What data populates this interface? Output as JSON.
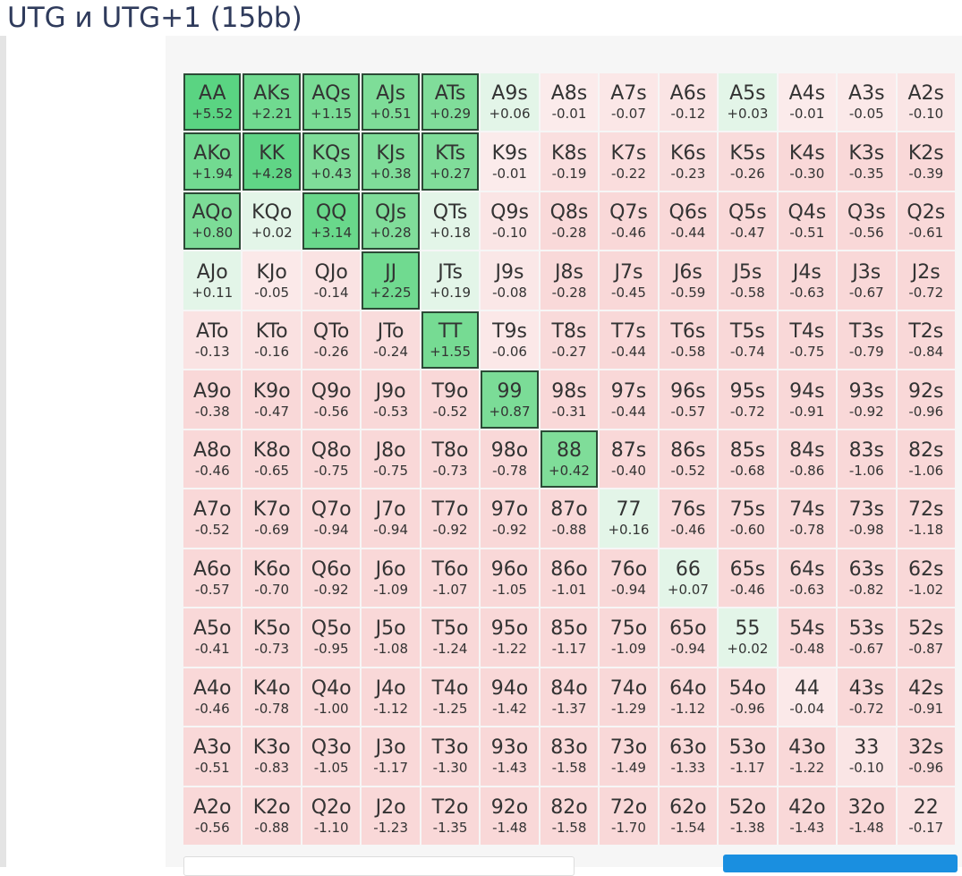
{
  "header": {
    "title": "UTG и UTG+1 (15bb)"
  },
  "grid": {
    "rows": [
      [
        [
          "AA",
          "+5.52"
        ],
        [
          "AKs",
          "+2.21"
        ],
        [
          "AQs",
          "+1.15"
        ],
        [
          "AJs",
          "+0.51"
        ],
        [
          "ATs",
          "+0.29"
        ],
        [
          "A9s",
          "+0.06"
        ],
        [
          "A8s",
          "-0.01"
        ],
        [
          "A7s",
          "-0.07"
        ],
        [
          "A6s",
          "-0.12"
        ],
        [
          "A5s",
          "+0.03"
        ],
        [
          "A4s",
          "-0.01"
        ],
        [
          "A3s",
          "-0.05"
        ],
        [
          "A2s",
          "-0.10"
        ]
      ],
      [
        [
          "AKo",
          "+1.94"
        ],
        [
          "KK",
          "+4.28"
        ],
        [
          "KQs",
          "+0.43"
        ],
        [
          "KJs",
          "+0.38"
        ],
        [
          "KTs",
          "+0.27"
        ],
        [
          "K9s",
          "-0.01"
        ],
        [
          "K8s",
          "-0.19"
        ],
        [
          "K7s",
          "-0.22"
        ],
        [
          "K6s",
          "-0.23"
        ],
        [
          "K5s",
          "-0.26"
        ],
        [
          "K4s",
          "-0.30"
        ],
        [
          "K3s",
          "-0.35"
        ],
        [
          "K2s",
          "-0.39"
        ]
      ],
      [
        [
          "AQo",
          "+0.80"
        ],
        [
          "KQo",
          "+0.02"
        ],
        [
          "QQ",
          "+3.14"
        ],
        [
          "QJs",
          "+0.28"
        ],
        [
          "QTs",
          "+0.18"
        ],
        [
          "Q9s",
          "-0.10"
        ],
        [
          "Q8s",
          "-0.28"
        ],
        [
          "Q7s",
          "-0.46"
        ],
        [
          "Q6s",
          "-0.44"
        ],
        [
          "Q5s",
          "-0.47"
        ],
        [
          "Q4s",
          "-0.51"
        ],
        [
          "Q3s",
          "-0.56"
        ],
        [
          "Q2s",
          "-0.61"
        ]
      ],
      [
        [
          "AJo",
          "+0.11"
        ],
        [
          "KJo",
          "-0.05"
        ],
        [
          "QJo",
          "-0.14"
        ],
        [
          "JJ",
          "+2.25"
        ],
        [
          "JTs",
          "+0.19"
        ],
        [
          "J9s",
          "-0.08"
        ],
        [
          "J8s",
          "-0.28"
        ],
        [
          "J7s",
          "-0.45"
        ],
        [
          "J6s",
          "-0.59"
        ],
        [
          "J5s",
          "-0.58"
        ],
        [
          "J4s",
          "-0.63"
        ],
        [
          "J3s",
          "-0.67"
        ],
        [
          "J2s",
          "-0.72"
        ]
      ],
      [
        [
          "ATo",
          "-0.13"
        ],
        [
          "KTo",
          "-0.16"
        ],
        [
          "QTo",
          "-0.26"
        ],
        [
          "JTo",
          "-0.24"
        ],
        [
          "TT",
          "+1.55"
        ],
        [
          "T9s",
          "-0.06"
        ],
        [
          "T8s",
          "-0.27"
        ],
        [
          "T7s",
          "-0.44"
        ],
        [
          "T6s",
          "-0.58"
        ],
        [
          "T5s",
          "-0.74"
        ],
        [
          "T4s",
          "-0.75"
        ],
        [
          "T3s",
          "-0.79"
        ],
        [
          "T2s",
          "-0.84"
        ]
      ],
      [
        [
          "A9o",
          "-0.38"
        ],
        [
          "K9o",
          "-0.47"
        ],
        [
          "Q9o",
          "-0.56"
        ],
        [
          "J9o",
          "-0.53"
        ],
        [
          "T9o",
          "-0.52"
        ],
        [
          "99",
          "+0.87"
        ],
        [
          "98s",
          "-0.31"
        ],
        [
          "97s",
          "-0.44"
        ],
        [
          "96s",
          "-0.57"
        ],
        [
          "95s",
          "-0.72"
        ],
        [
          "94s",
          "-0.91"
        ],
        [
          "93s",
          "-0.92"
        ],
        [
          "92s",
          "-0.96"
        ]
      ],
      [
        [
          "A8o",
          "-0.46"
        ],
        [
          "K8o",
          "-0.65"
        ],
        [
          "Q8o",
          "-0.75"
        ],
        [
          "J8o",
          "-0.75"
        ],
        [
          "T8o",
          "-0.73"
        ],
        [
          "98o",
          "-0.78"
        ],
        [
          "88",
          "+0.42"
        ],
        [
          "87s",
          "-0.40"
        ],
        [
          "86s",
          "-0.52"
        ],
        [
          "85s",
          "-0.68"
        ],
        [
          "84s",
          "-0.86"
        ],
        [
          "83s",
          "-1.06"
        ],
        [
          "82s",
          "-1.06"
        ]
      ],
      [
        [
          "A7o",
          "-0.52"
        ],
        [
          "K7o",
          "-0.69"
        ],
        [
          "Q7o",
          "-0.94"
        ],
        [
          "J7o",
          "-0.94"
        ],
        [
          "T7o",
          "-0.92"
        ],
        [
          "97o",
          "-0.92"
        ],
        [
          "87o",
          "-0.88"
        ],
        [
          "77",
          "+0.16"
        ],
        [
          "76s",
          "-0.46"
        ],
        [
          "75s",
          "-0.60"
        ],
        [
          "74s",
          "-0.78"
        ],
        [
          "73s",
          "-0.98"
        ],
        [
          "72s",
          "-1.18"
        ]
      ],
      [
        [
          "A6o",
          "-0.57"
        ],
        [
          "K6o",
          "-0.70"
        ],
        [
          "Q6o",
          "-0.92"
        ],
        [
          "J6o",
          "-1.09"
        ],
        [
          "T6o",
          "-1.07"
        ],
        [
          "96o",
          "-1.05"
        ],
        [
          "86o",
          "-1.01"
        ],
        [
          "76o",
          "-0.94"
        ],
        [
          "66",
          "+0.07"
        ],
        [
          "65s",
          "-0.46"
        ],
        [
          "64s",
          "-0.63"
        ],
        [
          "63s",
          "-0.82"
        ],
        [
          "62s",
          "-1.02"
        ]
      ],
      [
        [
          "A5o",
          "-0.41"
        ],
        [
          "K5o",
          "-0.73"
        ],
        [
          "Q5o",
          "-0.95"
        ],
        [
          "J5o",
          "-1.08"
        ],
        [
          "T5o",
          "-1.24"
        ],
        [
          "95o",
          "-1.22"
        ],
        [
          "85o",
          "-1.17"
        ],
        [
          "75o",
          "-1.09"
        ],
        [
          "65o",
          "-0.94"
        ],
        [
          "55",
          "+0.02"
        ],
        [
          "54s",
          "-0.48"
        ],
        [
          "53s",
          "-0.67"
        ],
        [
          "52s",
          "-0.87"
        ]
      ],
      [
        [
          "A4o",
          "-0.46"
        ],
        [
          "K4o",
          "-0.78"
        ],
        [
          "Q4o",
          "-1.00"
        ],
        [
          "J4o",
          "-1.12"
        ],
        [
          "T4o",
          "-1.25"
        ],
        [
          "94o",
          "-1.42"
        ],
        [
          "84o",
          "-1.37"
        ],
        [
          "74o",
          "-1.29"
        ],
        [
          "64o",
          "-1.12"
        ],
        [
          "54o",
          "-0.96"
        ],
        [
          "44",
          "-0.04"
        ],
        [
          "43s",
          "-0.72"
        ],
        [
          "42s",
          "-0.91"
        ]
      ],
      [
        [
          "A3o",
          "-0.51"
        ],
        [
          "K3o",
          "-0.83"
        ],
        [
          "Q3o",
          "-1.05"
        ],
        [
          "J3o",
          "-1.17"
        ],
        [
          "T3o",
          "-1.30"
        ],
        [
          "93o",
          "-1.43"
        ],
        [
          "83o",
          "-1.58"
        ],
        [
          "73o",
          "-1.49"
        ],
        [
          "63o",
          "-1.33"
        ],
        [
          "53o",
          "-1.17"
        ],
        [
          "43o",
          "-1.22"
        ],
        [
          "33",
          "-0.10"
        ],
        [
          "32s",
          "-0.96"
        ]
      ],
      [
        [
          "A2o",
          "-0.56"
        ],
        [
          "K2o",
          "-0.88"
        ],
        [
          "Q2o",
          "-1.10"
        ],
        [
          "J2o",
          "-1.23"
        ],
        [
          "T2o",
          "-1.35"
        ],
        [
          "92o",
          "-1.48"
        ],
        [
          "82o",
          "-1.58"
        ],
        [
          "72o",
          "-1.70"
        ],
        [
          "62o",
          "-1.54"
        ],
        [
          "52o",
          "-1.38"
        ],
        [
          "42o",
          "-1.43"
        ],
        [
          "32o",
          "-1.48"
        ],
        [
          "22",
          "-0.17"
        ]
      ]
    ]
  }
}
